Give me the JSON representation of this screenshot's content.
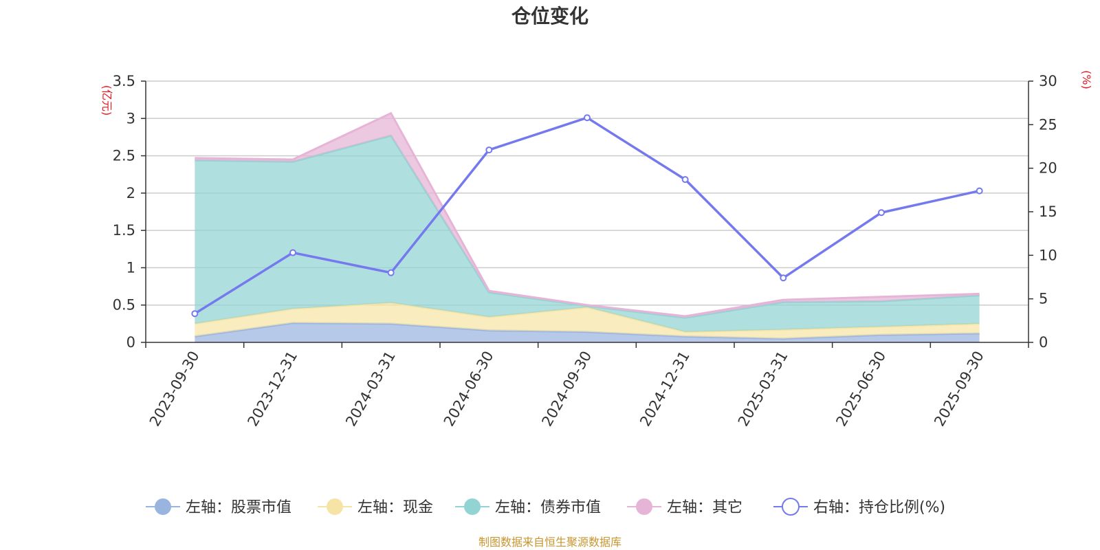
{
  "chart_data": {
    "type": "area",
    "title": "仓位变化",
    "left_unit": "(亿元)",
    "right_unit": "(%)",
    "categories": [
      "2023-09-30",
      "2023-12-31",
      "2024-03-31",
      "2024-06-30",
      "2024-09-30",
      "2024-12-31",
      "2025-03-31",
      "2025-06-30",
      "2025-09-30"
    ],
    "left_axis": {
      "min": 0,
      "max": 3.5,
      "ticks": [
        "0",
        "0.5",
        "1",
        "1.5",
        "2",
        "2.5",
        "3",
        "3.5"
      ]
    },
    "right_axis": {
      "min": 0,
      "max": 30,
      "ticks": [
        "0",
        "5",
        "10",
        "15",
        "20",
        "25",
        "30"
      ]
    },
    "stacked_series": [
      {
        "name": "左轴：股票市值",
        "color": "#9ab4e0",
        "values": [
          0.08,
          0.26,
          0.25,
          0.16,
          0.14,
          0.08,
          0.05,
          0.1,
          0.12
        ]
      },
      {
        "name": "左轴：现金",
        "color": "#f6e4a6",
        "values": [
          0.17,
          0.19,
          0.28,
          0.18,
          0.33,
          0.06,
          0.12,
          0.11,
          0.13
        ]
      },
      {
        "name": "左轴：债券市值",
        "color": "#92d3d3",
        "values": [
          2.19,
          1.97,
          2.24,
          0.33,
          0.02,
          0.19,
          0.37,
          0.34,
          0.38
        ]
      },
      {
        "name": "左轴：其它",
        "color": "#e6b4d6",
        "values": [
          0.03,
          0.03,
          0.3,
          0.02,
          0.01,
          0.02,
          0.03,
          0.06,
          0.02
        ]
      }
    ],
    "line_series": {
      "name": "右轴：持仓比例(%)",
      "color": "#7479ee",
      "values": [
        3.3,
        10.3,
        8.0,
        22.1,
        25.8,
        18.7,
        7.4,
        14.9,
        17.4
      ]
    },
    "source": "制图数据来自恒生聚源数据库"
  }
}
